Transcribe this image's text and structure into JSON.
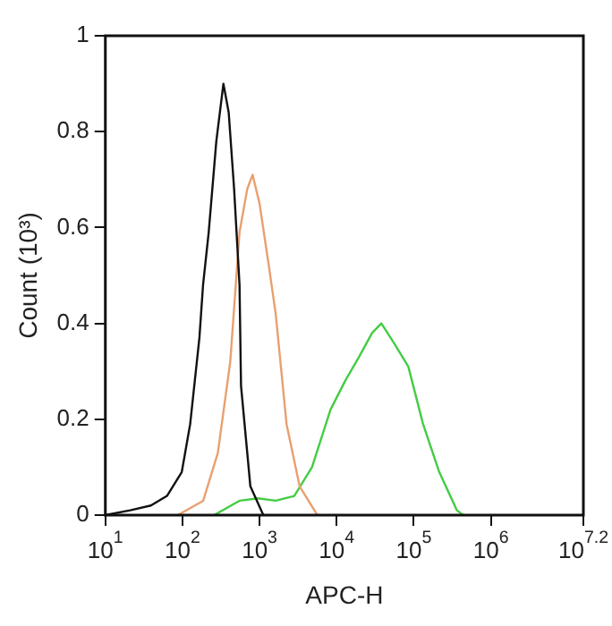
{
  "chart_data": {
    "type": "line",
    "xlabel": "APC-H",
    "ylabel": "Count (10³)",
    "log": "x",
    "grid": false,
    "legend": false,
    "marker": "none",
    "line_style": "solid",
    "xlim": [
      10,
      15848932
    ],
    "ylim": [
      0,
      1
    ],
    "xticks": [
      {
        "value": 10,
        "label": "10$^{1}$"
      },
      {
        "value": 100,
        "label": "10$^{2}$"
      },
      {
        "value": 1000,
        "label": "10$^{3}$"
      },
      {
        "value": 10000,
        "label": "10$^{4}$"
      },
      {
        "value": 100000,
        "label": "10$^{5}$"
      },
      {
        "value": 1000000,
        "label": "10$^{6}$"
      },
      {
        "value": 15848932,
        "label": "10$^{7.2}$"
      }
    ],
    "yticks": [
      0,
      0.2,
      0.4,
      0.6,
      0.8,
      1
    ],
    "series": [
      {
        "color": "#111111",
        "x": [
          10,
          21,
          39,
          63,
          98,
          126,
          166,
          185,
          219,
          275,
          340,
          398,
          468,
          550,
          575,
          760,
          1120
        ],
        "values": [
          0,
          0.01,
          0.02,
          0.04,
          0.09,
          0.19,
          0.37,
          0.48,
          0.59,
          0.78,
          0.9,
          0.84,
          0.68,
          0.48,
          0.27,
          0.06,
          0
        ]
      },
      {
        "color": "#e8a070",
        "x": [
          87,
          186,
          288,
          417,
          550,
          692,
          813,
          1000,
          1320,
          1620,
          2240,
          3310,
          5620
        ],
        "values": [
          0,
          0.03,
          0.13,
          0.32,
          0.59,
          0.68,
          0.71,
          0.65,
          0.52,
          0.42,
          0.19,
          0.06,
          0
        ]
      },
      {
        "color": "#44cc44",
        "x": [
          257,
          550,
          955,
          1620,
          2820,
          4790,
          8320,
          12900,
          19500,
          28800,
          38000,
          55000,
          85000,
          132000,
          214000,
          363000,
          437000
        ],
        "values": [
          0,
          0.03,
          0.035,
          0.03,
          0.04,
          0.1,
          0.22,
          0.28,
          0.33,
          0.38,
          0.4,
          0.36,
          0.31,
          0.19,
          0.09,
          0.01,
          0
        ]
      }
    ]
  }
}
